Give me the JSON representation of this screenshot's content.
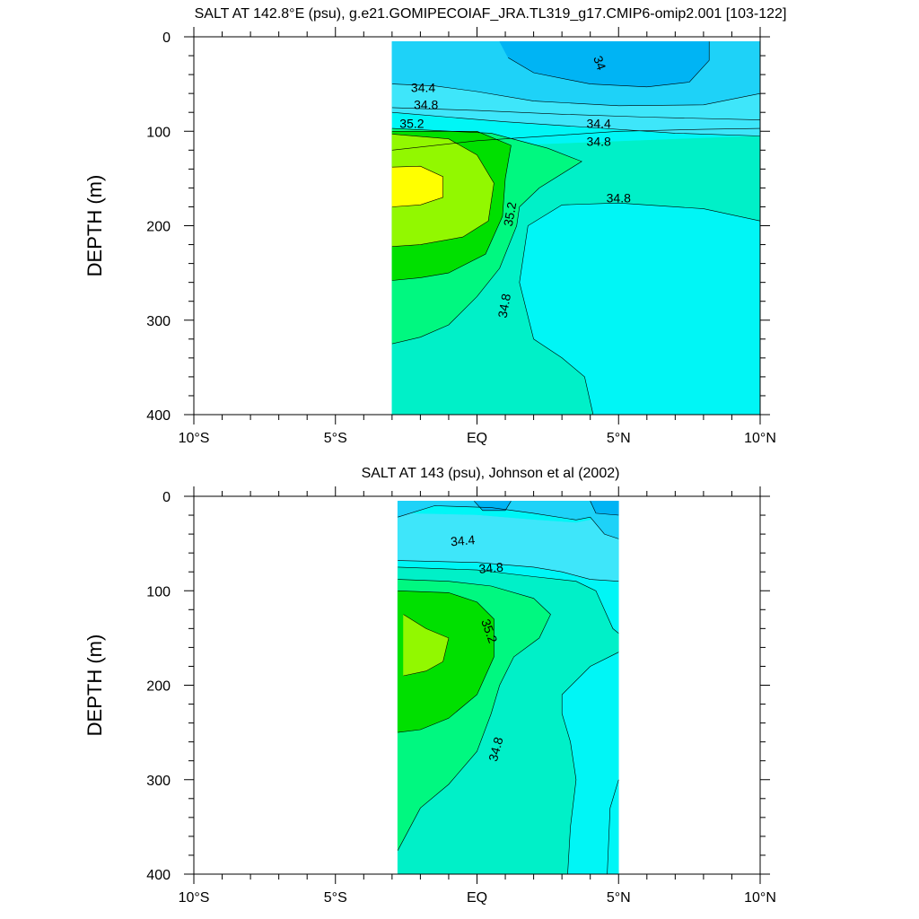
{
  "colors": {
    "s34": "#00b4f4",
    "s34_2": "#1ed2f8",
    "s34_4": "#3ee6fa",
    "s34_6": "#00f6f6",
    "s34_8": "#00f0c8",
    "s35_0": "#00f880",
    "s35_2": "#00e000",
    "s35_4": "#92f800",
    "s35_6": "#ffff00"
  },
  "chart_data": [
    {
      "type": "contour",
      "title": "SALT AT 142.8°E (psu), g.e21.GOMIPECOIAF_JRA.TL319_g17.CMIP6-omip2.001 [103-122]",
      "ylabel": "DEPTH (m)",
      "xlabel": "",
      "xlim": [
        -10,
        10
      ],
      "ylim": [
        0,
        400
      ],
      "y_inverted": true,
      "x_tick_labels": [
        "10°S",
        "5°S",
        "EQ",
        "5°N",
        "10°N"
      ],
      "y_tick_labels": [
        "0",
        "100",
        "200",
        "300",
        "400"
      ],
      "data_extent_lat": [
        -3,
        10
      ],
      "data_extent_depth": [
        5,
        400
      ],
      "contour_interval": 0.2,
      "contour_labels": [
        "34",
        "34.4",
        "34.8",
        "35.2",
        "34.4",
        "34.8",
        "34.8",
        "35.2",
        "34.8"
      ],
      "core_max_salinity": 35.6,
      "core_location": {
        "lat": -2.0,
        "depth": 160
      }
    },
    {
      "type": "contour",
      "title": "SALT AT 143 (psu), Johnson et al (2002)",
      "ylabel": "DEPTH (m)",
      "xlabel": "",
      "xlim": [
        -10,
        10
      ],
      "ylim": [
        0,
        400
      ],
      "y_inverted": true,
      "x_tick_labels": [
        "10°S",
        "5°S",
        "EQ",
        "5°N",
        "10°N"
      ],
      "y_tick_labels": [
        "0",
        "100",
        "200",
        "300",
        "400"
      ],
      "data_extent_lat": [
        -2.8,
        5
      ],
      "data_extent_depth": [
        5,
        400
      ],
      "contour_interval": 0.2,
      "contour_labels": [
        "34.4",
        "34.8",
        "35.2",
        "34.8"
      ],
      "core_max_salinity": 35.4,
      "core_location": {
        "lat": -2.2,
        "depth": 160
      }
    }
  ]
}
